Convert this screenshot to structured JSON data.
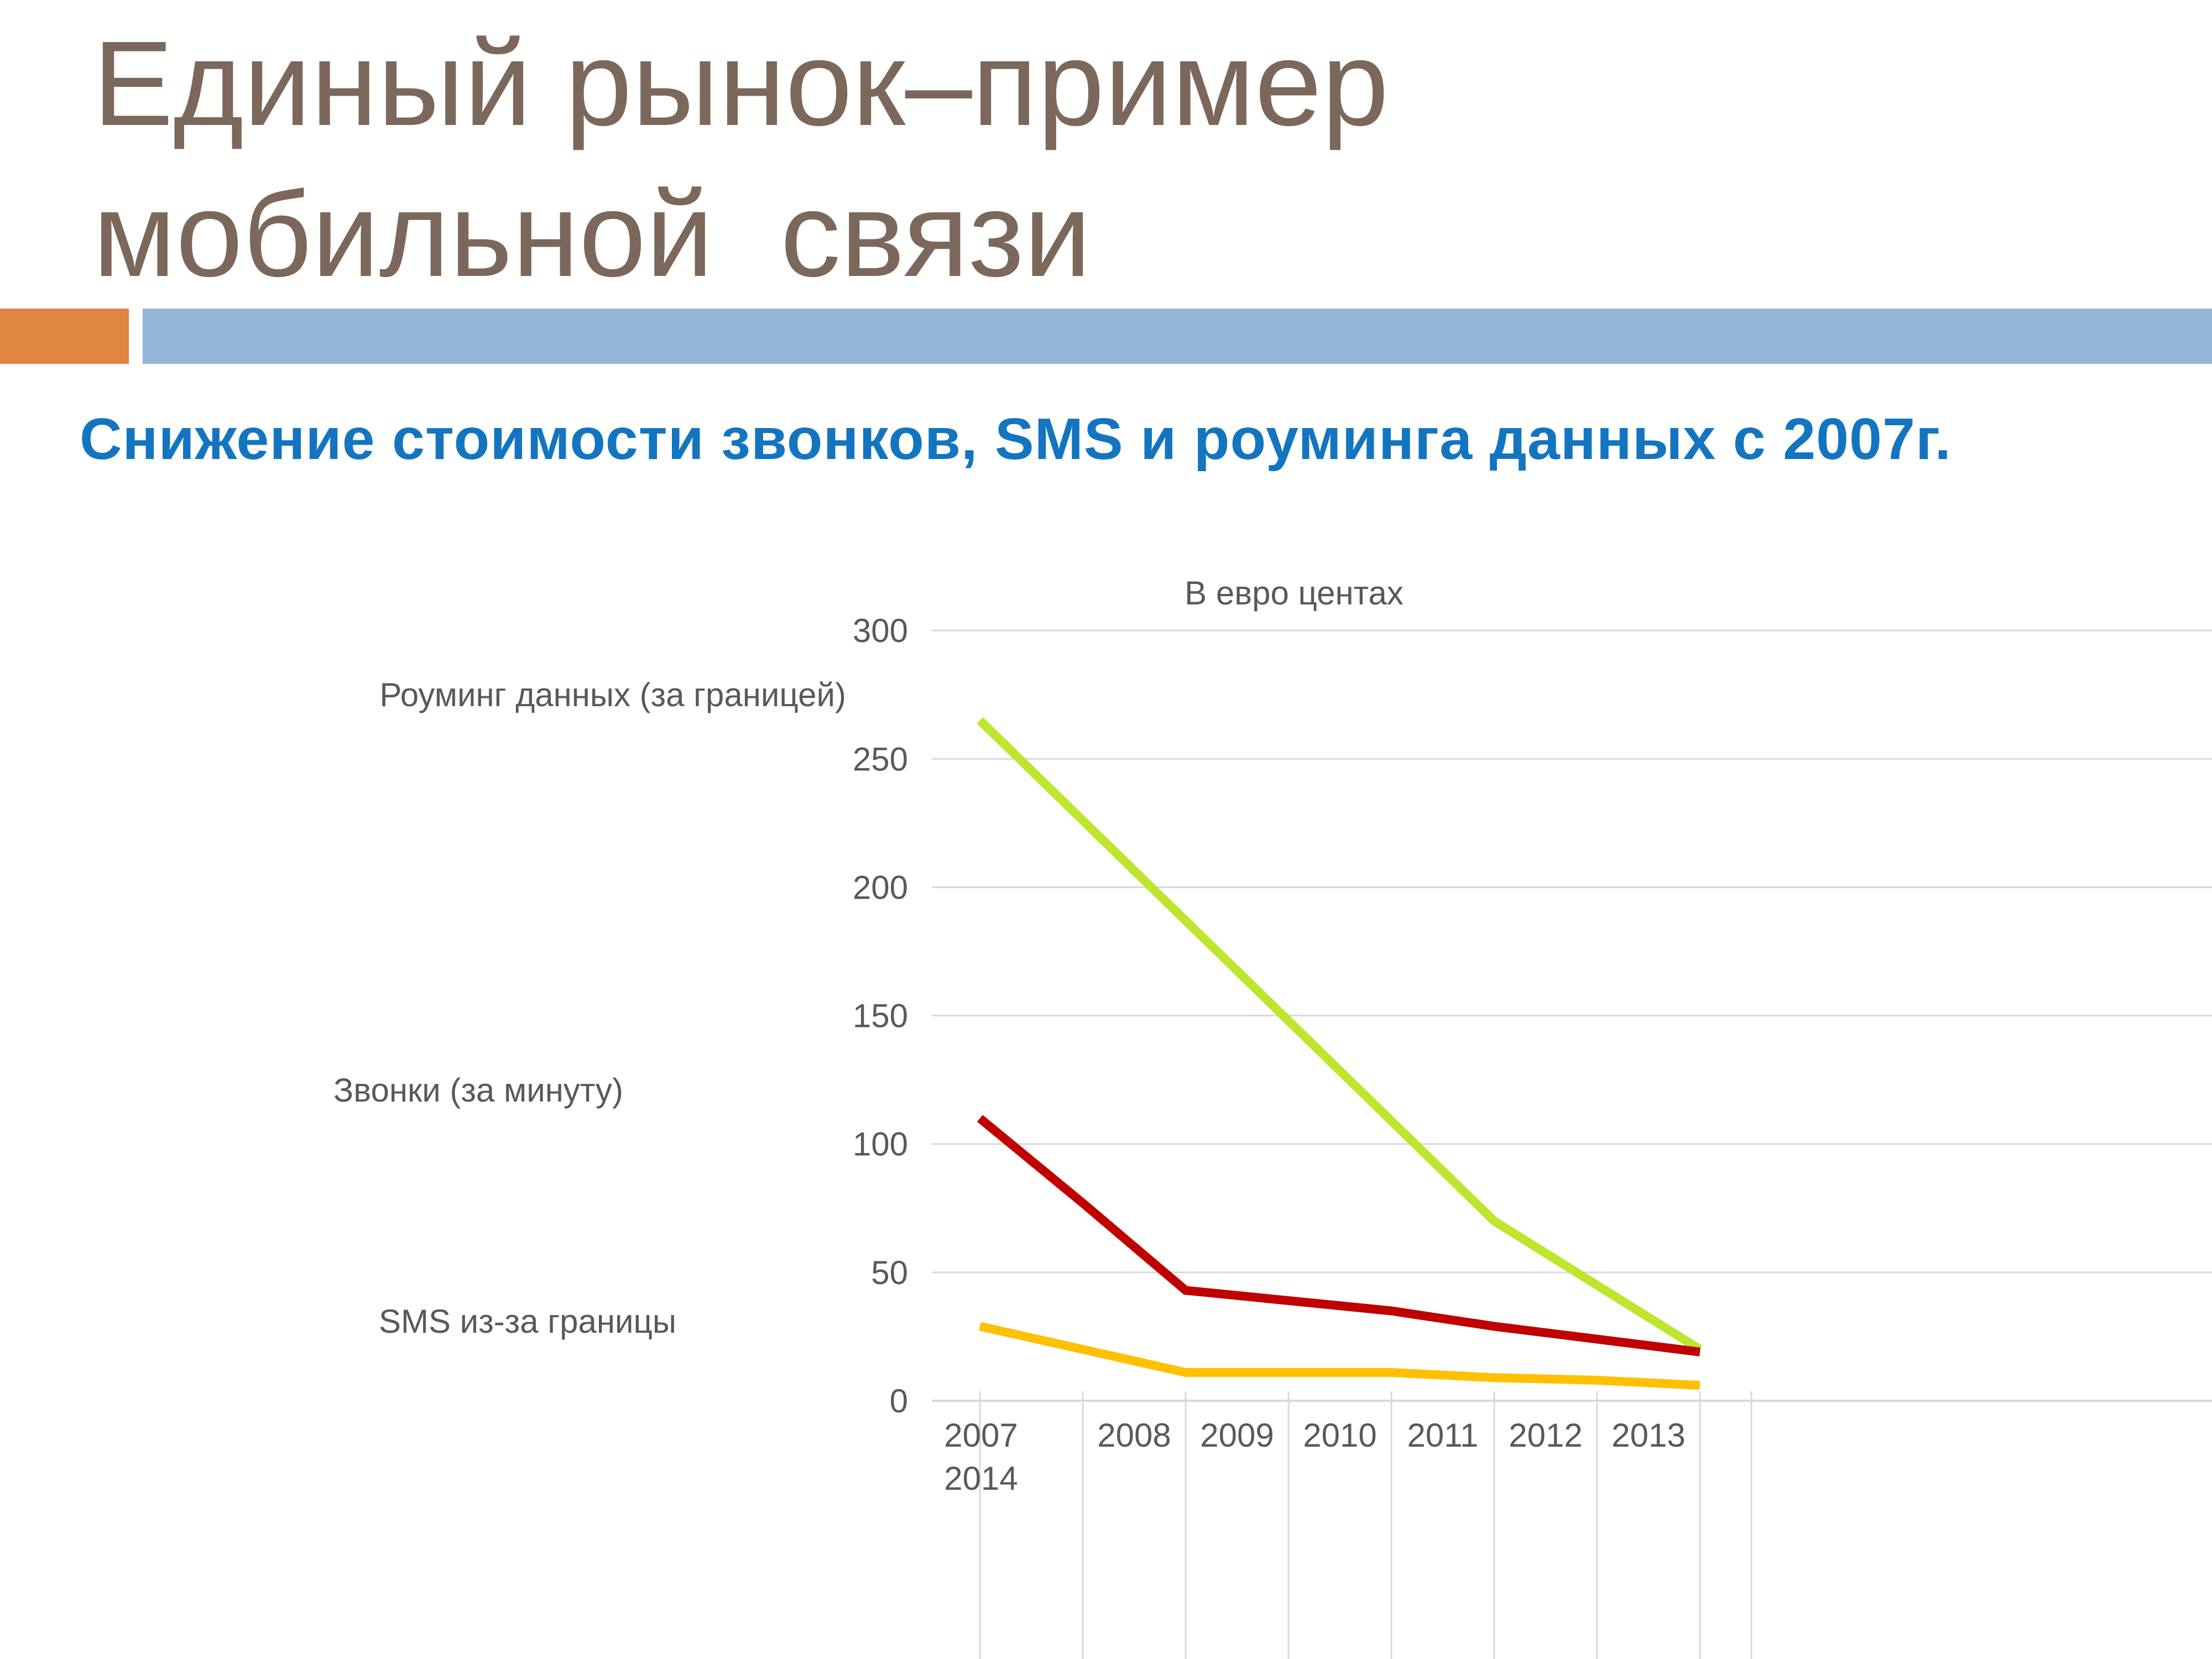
{
  "slide": {
    "title_line1": "Единый рынок–пример",
    "title_line2": "мобильной  связи",
    "subtitle": "Снижение стоимости звонков, SMS и роуминга данных с 2007г."
  },
  "colors": {
    "title_text": "#7b685b",
    "subtitle_text": "#1375c0",
    "accent_orange": "#e08542",
    "accent_blue": "#93b5d6",
    "chart_text": "#595959",
    "gridline": "#d9d9d9"
  },
  "chart_data": {
    "type": "line",
    "title": "В евро центах",
    "x": [
      2007,
      2008,
      2009,
      2010,
      2011,
      2012,
      2013,
      2014
    ],
    "x_axis": {
      "first_label_line1": "2007",
      "first_label_line2": "2014",
      "interval_labels": [
        "2008",
        "2009",
        "2010",
        "2011",
        "2012",
        "2013"
      ]
    },
    "y_ticks": [
      0,
      50,
      100,
      150,
      200,
      250,
      300
    ],
    "ylim": [
      0,
      300
    ],
    "grid": "horizontal",
    "legend_position": "left-of-lines",
    "series": [
      {
        "name": "Роуминг данных (за границей)",
        "color": "#bfe62e",
        "values": [
          265,
          226,
          187,
          148,
          109,
          70,
          45,
          20
        ]
      },
      {
        "name": "Звонки (за минуту)",
        "color": "#c00000",
        "values": [
          110,
          77,
          43,
          39,
          35,
          29,
          24,
          19
        ]
      },
      {
        "name": "SMS из-за границы",
        "color": "#ffc000",
        "values": [
          29,
          20,
          11,
          11,
          11,
          9,
          8,
          6
        ]
      }
    ]
  }
}
